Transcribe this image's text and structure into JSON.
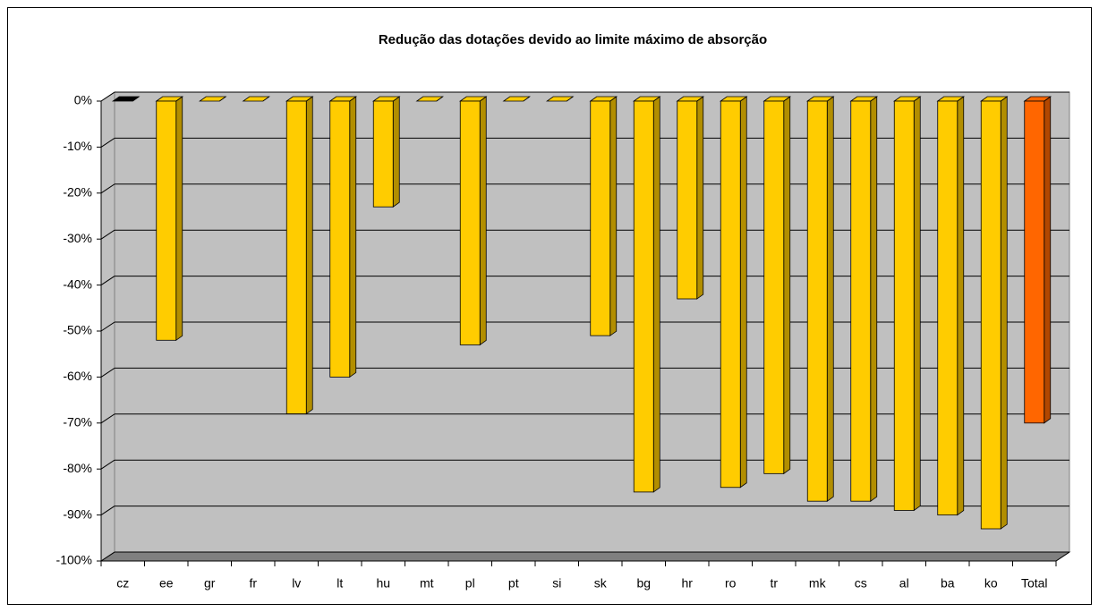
{
  "chart_data": {
    "type": "bar3d",
    "title": "Redução das dotações devido ao limite máximo de absorção",
    "categories": [
      "cz",
      "ee",
      "gr",
      "fr",
      "lv",
      "lt",
      "hu",
      "mt",
      "pl",
      "pt",
      "si",
      "sk",
      "bg",
      "hr",
      "ro",
      "tr",
      "mk",
      "cs",
      "al",
      "ba",
      "ko",
      "Total"
    ],
    "values": [
      0,
      -52,
      0,
      0,
      -68,
      -60,
      -23,
      0,
      -53,
      0,
      0,
      -51,
      -85,
      -43,
      -84,
      -81,
      -87,
      -87,
      -89,
      -90,
      -93,
      -70
    ],
    "colors": [
      "#000000",
      "#FFCC00",
      "#FFCC00",
      "#FFCC00",
      "#FFCC00",
      "#FFCC00",
      "#FFCC00",
      "#FFCC00",
      "#FFCC00",
      "#FFCC00",
      "#FFCC00",
      "#FFCC00",
      "#FFCC00",
      "#FFCC00",
      "#FFCC00",
      "#FFCC00",
      "#FFCC00",
      "#FFCC00",
      "#FFCC00",
      "#FFCC00",
      "#FFCC00",
      "#FF6600"
    ],
    "ylim": [
      -100,
      0
    ],
    "yticks": [
      {
        "value": 0,
        "label": "0%"
      },
      {
        "value": -10,
        "label": "-10%"
      },
      {
        "value": -20,
        "label": "-20%"
      },
      {
        "value": -30,
        "label": "-30%"
      },
      {
        "value": -40,
        "label": "-40%"
      },
      {
        "value": -50,
        "label": "-50%"
      },
      {
        "value": -60,
        "label": "-60%"
      },
      {
        "value": -70,
        "label": "-70%"
      },
      {
        "value": -80,
        "label": "-80%"
      },
      {
        "value": -90,
        "label": "-90%"
      },
      {
        "value": -100,
        "label": "-100%"
      }
    ],
    "grid": true
  }
}
